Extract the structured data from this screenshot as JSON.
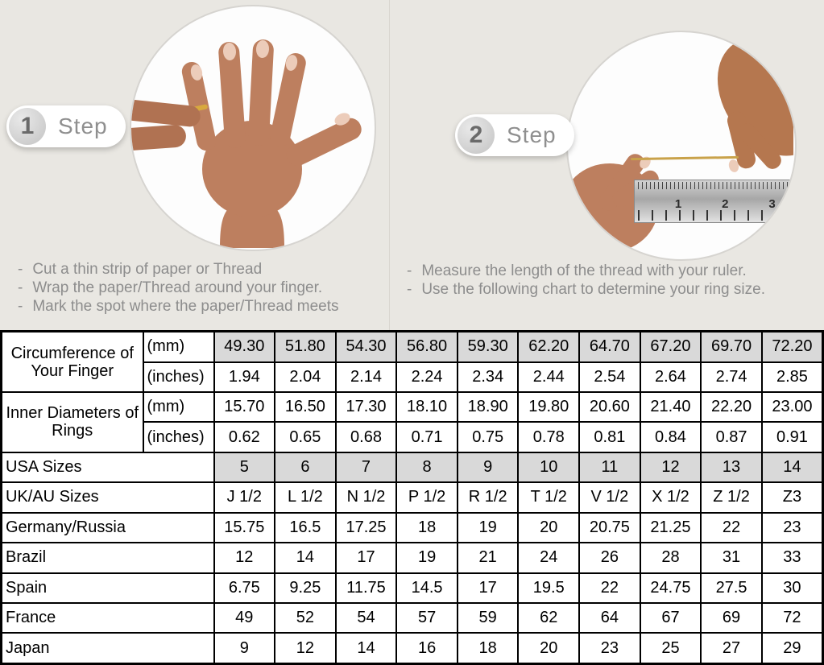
{
  "steps": [
    {
      "number": "1",
      "label": "Step",
      "instructions": [
        "Cut a thin strip of paper or Thread",
        "Wrap the paper/Thread around your finger.",
        "Mark the spot where the paper/Thread meets"
      ]
    },
    {
      "number": "2",
      "label": "Step",
      "instructions": [
        "Measure the length of the thread with your ruler.",
        "Use the following chart to determine your ring size."
      ],
      "ruler_numbers": [
        "1",
        "2",
        "3"
      ]
    }
  ],
  "table": {
    "rows": [
      {
        "label": "Circumference of Your Finger",
        "labelRowspan": 2,
        "unit": "(mm)",
        "shaded": true,
        "values": [
          "49.30",
          "51.80",
          "54.30",
          "56.80",
          "59.30",
          "62.20",
          "64.70",
          "67.20",
          "69.70",
          "72.20"
        ]
      },
      {
        "unit": "(inches)",
        "shaded": false,
        "values": [
          "1.94",
          "2.04",
          "2.14",
          "2.24",
          "2.34",
          "2.44",
          "2.54",
          "2.64",
          "2.74",
          "2.85"
        ]
      },
      {
        "label": "Inner Diameters of Rings",
        "labelRowspan": 2,
        "unit": "(mm)",
        "shaded": false,
        "values": [
          "15.70",
          "16.50",
          "17.30",
          "18.10",
          "18.90",
          "19.80",
          "20.60",
          "21.40",
          "22.20",
          "23.00"
        ]
      },
      {
        "unit": "(inches)",
        "shaded": false,
        "values": [
          "0.62",
          "0.65",
          "0.68",
          "0.71",
          "0.75",
          "0.78",
          "0.81",
          "0.84",
          "0.87",
          "0.91"
        ]
      },
      {
        "label": "USA Sizes",
        "labelColspan": 2,
        "shaded": true,
        "values": [
          "5",
          "6",
          "7",
          "8",
          "9",
          "10",
          "11",
          "12",
          "13",
          "14"
        ]
      },
      {
        "label": "UK/AU Sizes",
        "labelColspan": 2,
        "shaded": false,
        "values": [
          "J 1/2",
          "L 1/2",
          "N 1/2",
          "P 1/2",
          "R 1/2",
          "T 1/2",
          "V 1/2",
          "X 1/2",
          "Z 1/2",
          "Z3"
        ]
      },
      {
        "label": "Germany/Russia",
        "labelColspan": 2,
        "shaded": false,
        "values": [
          "15.75",
          "16.5",
          "17.25",
          "18",
          "19",
          "20",
          "20.75",
          "21.25",
          "22",
          "23"
        ]
      },
      {
        "label": "Brazil",
        "labelColspan": 2,
        "shaded": false,
        "values": [
          "12",
          "14",
          "17",
          "19",
          "21",
          "24",
          "26",
          "28",
          "31",
          "33"
        ]
      },
      {
        "label": "Spain",
        "labelColspan": 2,
        "shaded": false,
        "values": [
          "6.75",
          "9.25",
          "11.75",
          "14.5",
          "17",
          "19.5",
          "22",
          "24.75",
          "27.5",
          "30"
        ]
      },
      {
        "label": "France",
        "labelColspan": 2,
        "shaded": false,
        "values": [
          "49",
          "52",
          "54",
          "57",
          "59",
          "62",
          "64",
          "67",
          "69",
          "72"
        ]
      },
      {
        "label": "Japan",
        "labelColspan": 2,
        "shaded": false,
        "values": [
          "9",
          "12",
          "14",
          "16",
          "18",
          "20",
          "23",
          "25",
          "27",
          "29"
        ]
      }
    ]
  },
  "colors": {
    "background": "#e9e7e2",
    "table_shade": "#d9d9d9",
    "muted_text": "#8d8d8d",
    "table_border": "#000000",
    "thread_gold": "#c9a24a",
    "skin_tone": "#bd7f5f"
  },
  "icons": {
    "step1_photo": "hand-with-ring-photo",
    "step2_photo": "hands-measuring-thread-on-ruler-photo"
  }
}
